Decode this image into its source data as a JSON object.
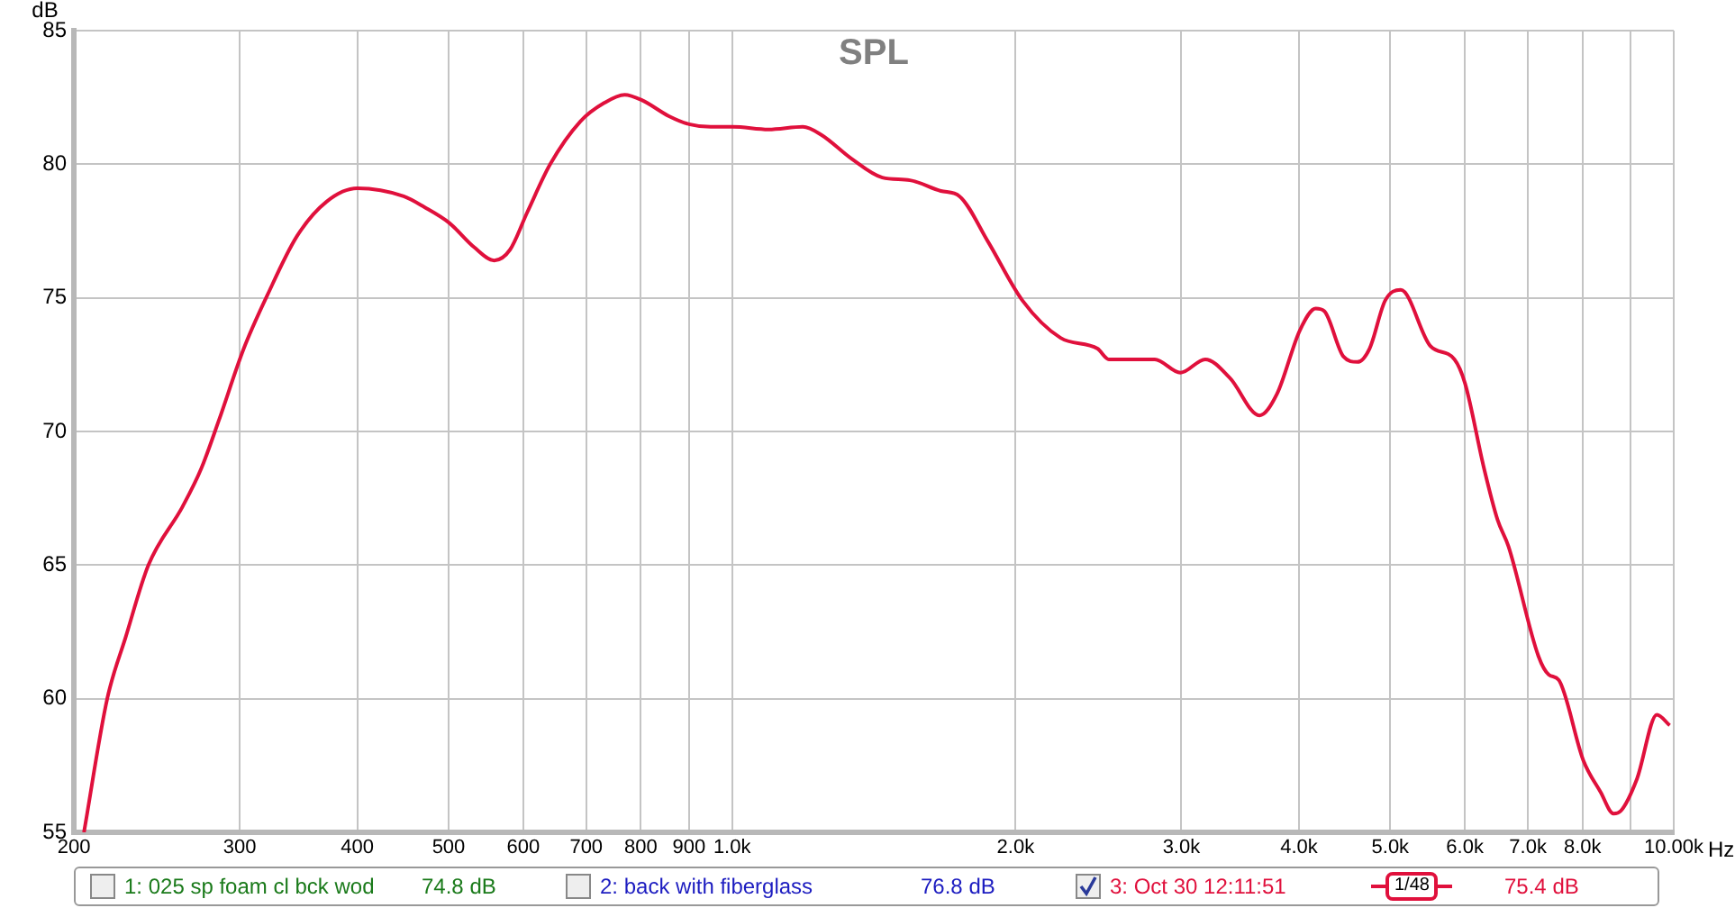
{
  "chart_data": {
    "type": "line",
    "title": "SPL",
    "xlabel": "Hz",
    "ylabel": "dB",
    "x": [
      205,
      217,
      227,
      240,
      261,
      273,
      285,
      303,
      321,
      345,
      371,
      400,
      448,
      471,
      501,
      532,
      559,
      581,
      606,
      641,
      690,
      732,
      769,
      802,
      857,
      900,
      949,
      1002,
      1093,
      1189,
      1244,
      1340,
      1444,
      1545,
      1666,
      1744,
      1870,
      2034,
      2233,
      2444,
      2513,
      2811,
      2994,
      3180,
      3378,
      3632,
      3790,
      4010,
      4167,
      4256,
      4460,
      4614,
      4753,
      4938,
      5130,
      5515,
      5850,
      6003,
      6290,
      6499,
      6676,
      7182,
      7367,
      7549,
      8015,
      8364,
      8630,
      8785,
      9140,
      9597,
      9902
    ],
    "series": [
      {
        "name": "3: Oct 30 12:11:51",
        "color": "#e0103c",
        "values": [
          55.0,
          60.0,
          62.3,
          65.0,
          67.2,
          68.6,
          70.4,
          73.1,
          75.1,
          77.3,
          78.6,
          79.1,
          78.8,
          78.4,
          77.8,
          76.9,
          76.4,
          76.8,
          78.2,
          80.0,
          81.6,
          82.3,
          82.6,
          82.4,
          81.8,
          81.5,
          81.4,
          81.4,
          81.3,
          81.4,
          81.1,
          80.2,
          79.5,
          79.4,
          79.0,
          78.8,
          77.1,
          74.9,
          73.5,
          73.1,
          72.7,
          72.7,
          72.2,
          72.7,
          72.0,
          70.6,
          71.4,
          73.8,
          74.6,
          74.5,
          72.8,
          72.6,
          73.1,
          74.9,
          75.3,
          73.2,
          72.7,
          71.8,
          68.6,
          66.7,
          65.7,
          61.6,
          60.9,
          60.7,
          57.7,
          56.5,
          55.7,
          55.8,
          57.0,
          59.4,
          59.0
        ]
      }
    ],
    "xlim": [
      200,
      10000
    ],
    "xticks": [
      200,
      300,
      400,
      500,
      600,
      700,
      800,
      900,
      {
        "value": 1000,
        "label": "1.0k"
      },
      {
        "value": 2000,
        "label": "2.0k"
      },
      {
        "value": 3000,
        "label": "3.0k"
      },
      {
        "value": 4000,
        "label": "4.0k"
      },
      {
        "value": 5000,
        "label": "5.0k"
      },
      {
        "value": 6000,
        "label": "6.0k"
      },
      {
        "value": 7000,
        "label": "7.0k"
      },
      {
        "value": 8000,
        "label": "8.0k"
      },
      {
        "value": 9000,
        "label": null
      },
      {
        "value": 10000,
        "label": "10.00k"
      }
    ],
    "ylim": [
      55,
      85
    ],
    "yticks": [
      55,
      60,
      65,
      70,
      75,
      80,
      85
    ],
    "log": "x",
    "grid": true,
    "legend": "bottom",
    "marker": "none",
    "line_style": "solid",
    "annotations": [
      "1: 025 sp foam cl bck wod",
      "74.8 dB",
      "2: back with fiberglass",
      "76.8 dB",
      "1/48",
      "75.4 dB"
    ]
  }
}
